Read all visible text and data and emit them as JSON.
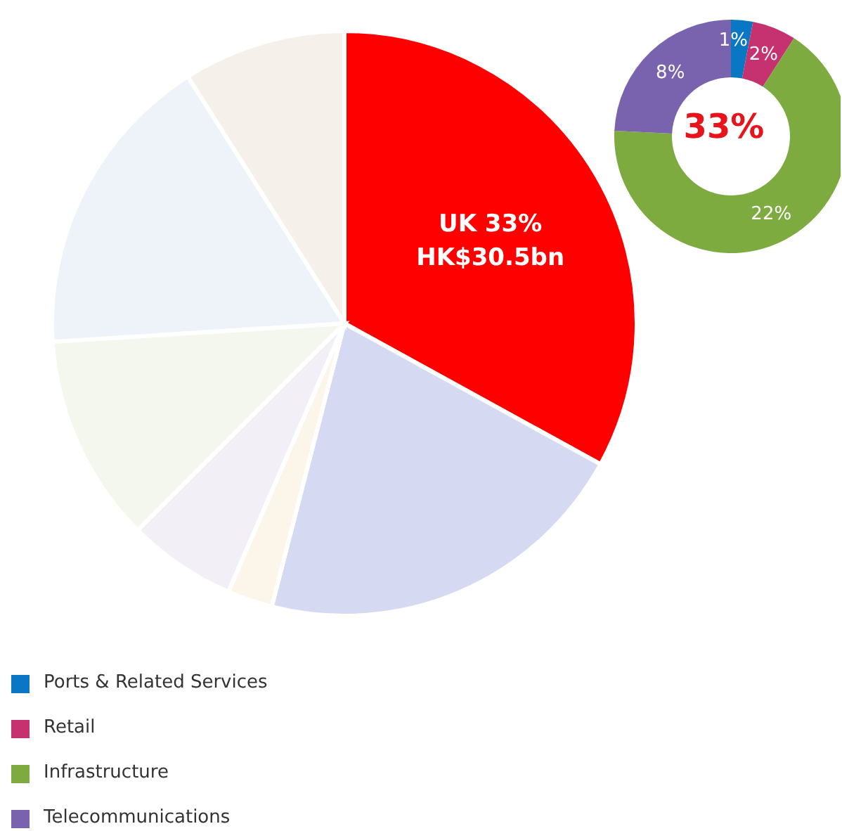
{
  "chart_data": [
    {
      "type": "pie",
      "categories": [
        null,
        null,
        null,
        null,
        null,
        null,
        null
      ],
      "values": [
        33,
        21,
        2.5,
        6,
        11.5,
        17,
        9
      ],
      "colors": [
        "#ff0000",
        "#d5daf2",
        "#fbf5ea",
        "#f2eff6",
        "#f3f7ee",
        "#eef3f9",
        "#f5f0e9"
      ],
      "value_labels": [
        "UK 33%\nHK$30.5bn",
        null,
        null,
        null,
        null,
        null,
        null
      ]
    },
    {
      "type": "donut",
      "categories": [
        "Ports & Related Services",
        "Retail",
        "Infrastructure",
        "Telecommunications"
      ],
      "values": [
        1,
        2,
        22,
        8
      ],
      "colors": [
        "#0a77c4",
        "#c6316f",
        "#7dab3f",
        "#7a63ae"
      ],
      "value_labels": [
        "1%",
        "2%",
        "22%",
        "8%"
      ],
      "legend": "bottom left",
      "annotations": [
        "33%"
      ]
    }
  ]
}
